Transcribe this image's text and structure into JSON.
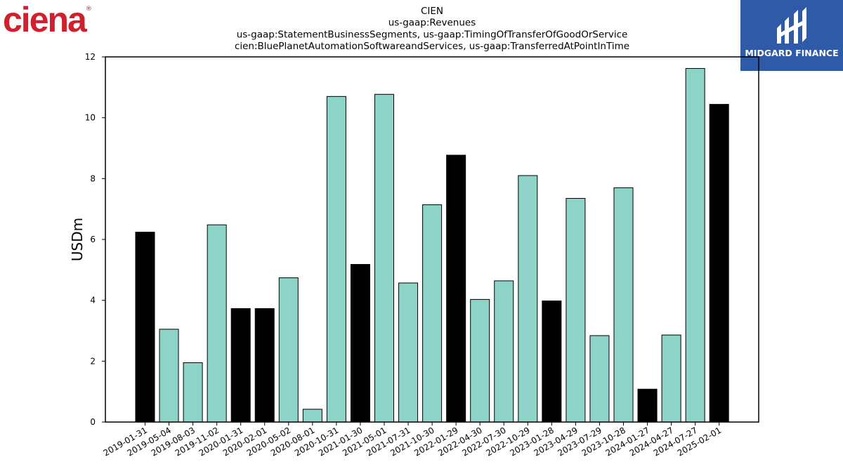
{
  "branding": {
    "left_logo_text": "ciena",
    "left_logo_registered": "®",
    "left_logo_color": "#d0202e",
    "right_logo_text": "MIDGARD FINANCE",
    "right_logo_bg": "#2f5aa8"
  },
  "colors": {
    "bar_default": "#8dd3c7",
    "bar_highlight": "#000000",
    "bar_edge": "#000000"
  },
  "chart_data": {
    "type": "bar",
    "title": [
      "CIEN",
      "us-gaap:Revenues",
      "us-gaap:StatementBusinessSegments, us-gaap:TimingOfTransferOfGoodOrService",
      "cien:BluePlanetAutomationSoftwareandServices, us-gaap:TransferredAtPointInTime"
    ],
    "xlabel": "",
    "ylabel": "USDm",
    "ylim": [
      0,
      12
    ],
    "yticks": [
      0,
      2,
      4,
      6,
      8,
      10,
      12
    ],
    "grid": false,
    "categories": [
      "2019-01-31",
      "2019-05-04",
      "2019-08-03",
      "2019-11-02",
      "2020-01-31",
      "2020-02-01",
      "2020-05-02",
      "2020-08-01",
      "2020-10-31",
      "2021-01-30",
      "2021-05-01",
      "2021-07-31",
      "2021-10-30",
      "2022-01-29",
      "2022-04-30",
      "2022-07-30",
      "2022-10-29",
      "2023-01-28",
      "2023-04-29",
      "2023-07-29",
      "2023-10-28",
      "2024-01-27",
      "2024-04-27",
      "2024-07-27",
      "2025-02-01"
    ],
    "values": [
      6.24,
      3.05,
      1.95,
      6.48,
      3.73,
      3.73,
      4.74,
      0.42,
      10.7,
      5.18,
      10.77,
      4.57,
      7.14,
      8.77,
      4.03,
      4.64,
      8.1,
      3.98,
      7.35,
      2.84,
      7.7,
      1.08,
      2.86,
      11.62,
      10.44
    ],
    "highlight": [
      true,
      false,
      false,
      false,
      true,
      true,
      false,
      false,
      false,
      true,
      false,
      false,
      false,
      true,
      false,
      false,
      false,
      true,
      false,
      false,
      false,
      true,
      false,
      false,
      true
    ]
  }
}
